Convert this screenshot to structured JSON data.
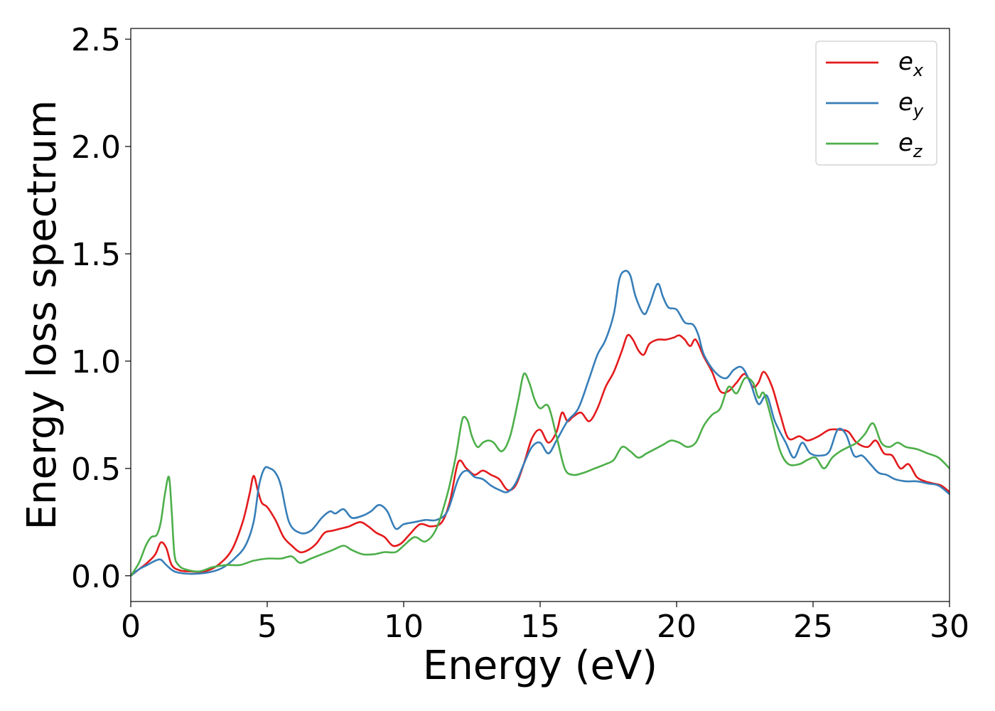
{
  "chart_data": {
    "type": "line",
    "title": "",
    "xlabel": "Energy (eV)",
    "ylabel": "Energy loss spectrum",
    "xlim": [
      0,
      30
    ],
    "ylim": [
      -0.12,
      2.55
    ],
    "xticks": [
      0,
      5,
      10,
      15,
      20,
      25,
      30
    ],
    "xtick_labels": [
      "0",
      "5",
      "10",
      "15",
      "20",
      "25",
      "30"
    ],
    "yticks": [
      0.0,
      0.5,
      1.0,
      1.5,
      2.0,
      2.5
    ],
    "ytick_labels": [
      "0.0",
      "0.5",
      "1.0",
      "1.5",
      "2.0",
      "2.5"
    ],
    "grid": false,
    "legend_position": "top-right",
    "series": [
      {
        "name": "e",
        "subscript": "x",
        "color": "#e41a1c",
        "x": [
          0,
          0.3,
          0.6,
          0.9,
          1.1,
          1.3,
          1.5,
          1.8,
          2.2,
          2.7,
          3.2,
          3.7,
          4.1,
          4.35,
          4.5,
          4.65,
          4.8,
          5.0,
          5.3,
          5.6,
          5.9,
          6.2,
          6.5,
          6.8,
          7.1,
          7.4,
          7.7,
          8.0,
          8.4,
          8.7,
          9.0,
          9.3,
          9.6,
          9.9,
          10.2,
          10.6,
          11.0,
          11.4,
          11.7,
          12.0,
          12.3,
          12.6,
          12.9,
          13.2,
          13.5,
          13.8,
          14.1,
          14.4,
          14.7,
          15.0,
          15.3,
          15.6,
          15.8,
          16.0,
          16.2,
          16.5,
          16.8,
          17.1,
          17.4,
          17.7,
          18.0,
          18.2,
          18.4,
          18.6,
          18.8,
          19.0,
          19.3,
          19.6,
          19.9,
          20.1,
          20.3,
          20.5,
          20.7,
          21.0,
          21.3,
          21.6,
          21.9,
          22.2,
          22.5,
          22.8,
          23.0,
          23.2,
          23.5,
          23.8,
          24.1,
          24.5,
          24.8,
          25.2,
          25.6,
          26.0,
          26.3,
          26.6,
          27.0,
          27.3,
          27.6,
          27.9,
          28.2,
          28.5,
          28.8,
          29.1,
          29.4,
          29.7,
          30.0
        ],
        "y": [
          0.0,
          0.03,
          0.06,
          0.1,
          0.155,
          0.13,
          0.05,
          0.025,
          0.02,
          0.02,
          0.05,
          0.12,
          0.25,
          0.38,
          0.465,
          0.4,
          0.34,
          0.32,
          0.26,
          0.18,
          0.14,
          0.11,
          0.12,
          0.15,
          0.2,
          0.21,
          0.22,
          0.23,
          0.25,
          0.23,
          0.2,
          0.18,
          0.14,
          0.15,
          0.19,
          0.24,
          0.23,
          0.25,
          0.35,
          0.53,
          0.5,
          0.47,
          0.49,
          0.47,
          0.45,
          0.4,
          0.42,
          0.52,
          0.64,
          0.68,
          0.62,
          0.67,
          0.76,
          0.72,
          0.74,
          0.76,
          0.72,
          0.78,
          0.88,
          0.95,
          1.05,
          1.12,
          1.1,
          1.05,
          1.03,
          1.08,
          1.1,
          1.1,
          1.11,
          1.12,
          1.1,
          1.07,
          1.1,
          1.02,
          0.95,
          0.86,
          0.86,
          0.9,
          0.94,
          0.88,
          0.9,
          0.95,
          0.88,
          0.75,
          0.64,
          0.65,
          0.63,
          0.65,
          0.68,
          0.68,
          0.67,
          0.62,
          0.6,
          0.63,
          0.57,
          0.56,
          0.5,
          0.52,
          0.46,
          0.44,
          0.43,
          0.42,
          0.39
        ]
      },
      {
        "name": "e",
        "subscript": "y",
        "color": "#377eb8",
        "x": [
          0,
          0.3,
          0.6,
          0.9,
          1.1,
          1.3,
          1.6,
          2.0,
          2.5,
          3.0,
          3.4,
          3.8,
          4.2,
          4.5,
          4.7,
          4.9,
          5.1,
          5.3,
          5.5,
          5.8,
          6.2,
          6.6,
          7.0,
          7.3,
          7.5,
          7.8,
          8.1,
          8.5,
          8.8,
          9.1,
          9.4,
          9.7,
          10.0,
          10.4,
          10.8,
          11.2,
          11.6,
          12.0,
          12.3,
          12.6,
          12.9,
          13.2,
          13.5,
          13.8,
          14.1,
          14.4,
          14.7,
          15.0,
          15.3,
          15.6,
          16.0,
          16.4,
          16.8,
          17.1,
          17.4,
          17.7,
          17.9,
          18.1,
          18.3,
          18.5,
          18.8,
          19.0,
          19.3,
          19.5,
          19.7,
          20.0,
          20.3,
          20.6,
          20.8,
          21.0,
          21.4,
          21.8,
          22.1,
          22.4,
          22.7,
          23.0,
          23.3,
          23.6,
          24.0,
          24.3,
          24.6,
          24.9,
          25.3,
          25.6,
          25.9,
          26.2,
          26.5,
          26.8,
          27.1,
          27.4,
          27.7,
          28.0,
          28.4,
          28.8,
          29.2,
          29.6,
          30.0
        ],
        "y": [
          0.0,
          0.03,
          0.05,
          0.07,
          0.075,
          0.05,
          0.02,
          0.01,
          0.01,
          0.02,
          0.04,
          0.08,
          0.14,
          0.25,
          0.42,
          0.5,
          0.5,
          0.48,
          0.42,
          0.25,
          0.2,
          0.21,
          0.27,
          0.3,
          0.29,
          0.31,
          0.27,
          0.28,
          0.3,
          0.33,
          0.3,
          0.22,
          0.24,
          0.25,
          0.26,
          0.26,
          0.3,
          0.45,
          0.49,
          0.46,
          0.45,
          0.42,
          0.4,
          0.39,
          0.43,
          0.52,
          0.6,
          0.62,
          0.57,
          0.63,
          0.72,
          0.78,
          0.92,
          1.03,
          1.1,
          1.22,
          1.38,
          1.42,
          1.4,
          1.3,
          1.22,
          1.26,
          1.36,
          1.3,
          1.25,
          1.24,
          1.18,
          1.17,
          1.12,
          1.03,
          0.95,
          0.92,
          0.96,
          0.97,
          0.9,
          0.8,
          0.84,
          0.72,
          0.62,
          0.55,
          0.62,
          0.57,
          0.56,
          0.58,
          0.68,
          0.66,
          0.56,
          0.56,
          0.52,
          0.48,
          0.47,
          0.45,
          0.44,
          0.44,
          0.43,
          0.42,
          0.38
        ]
      },
      {
        "name": "e",
        "subscript": "z",
        "color": "#4daf4a",
        "x": [
          0,
          0.3,
          0.55,
          0.75,
          0.95,
          1.1,
          1.25,
          1.4,
          1.5,
          1.6,
          1.75,
          2.0,
          2.5,
          3.0,
          3.5,
          4.0,
          4.5,
          5.0,
          5.5,
          5.9,
          6.2,
          6.6,
          7.0,
          7.4,
          7.8,
          8.1,
          8.5,
          8.9,
          9.3,
          9.7,
          10.0,
          10.4,
          10.8,
          11.2,
          11.6,
          11.9,
          12.1,
          12.2,
          12.35,
          12.5,
          12.7,
          12.9,
          13.1,
          13.3,
          13.6,
          13.9,
          14.2,
          14.4,
          14.6,
          14.8,
          15.0,
          15.3,
          15.6,
          15.9,
          16.2,
          16.6,
          17.0,
          17.4,
          17.7,
          18.0,
          18.3,
          18.6,
          18.9,
          19.2,
          19.5,
          19.8,
          20.1,
          20.4,
          20.7,
          21.0,
          21.3,
          21.6,
          21.9,
          22.2,
          22.5,
          22.8,
          23.0,
          23.2,
          23.5,
          23.8,
          24.1,
          24.5,
          24.8,
          25.1,
          25.4,
          25.7,
          26.0,
          26.3,
          26.6,
          26.9,
          27.2,
          27.5,
          27.8,
          28.1,
          28.4,
          28.8,
          29.2,
          29.6,
          30.0
        ],
        "y": [
          0.0,
          0.06,
          0.14,
          0.18,
          0.19,
          0.25,
          0.38,
          0.46,
          0.3,
          0.1,
          0.05,
          0.03,
          0.02,
          0.04,
          0.05,
          0.05,
          0.07,
          0.08,
          0.08,
          0.09,
          0.06,
          0.08,
          0.1,
          0.12,
          0.14,
          0.12,
          0.1,
          0.1,
          0.11,
          0.11,
          0.14,
          0.18,
          0.16,
          0.22,
          0.38,
          0.55,
          0.7,
          0.74,
          0.72,
          0.65,
          0.6,
          0.62,
          0.63,
          0.62,
          0.58,
          0.65,
          0.82,
          0.94,
          0.9,
          0.82,
          0.78,
          0.79,
          0.65,
          0.5,
          0.47,
          0.48,
          0.5,
          0.52,
          0.54,
          0.6,
          0.58,
          0.55,
          0.57,
          0.59,
          0.61,
          0.63,
          0.62,
          0.6,
          0.62,
          0.7,
          0.75,
          0.78,
          0.88,
          0.85,
          0.92,
          0.9,
          0.83,
          0.85,
          0.72,
          0.58,
          0.52,
          0.52,
          0.54,
          0.55,
          0.5,
          0.55,
          0.58,
          0.6,
          0.62,
          0.66,
          0.71,
          0.62,
          0.6,
          0.62,
          0.6,
          0.59,
          0.57,
          0.55,
          0.5
        ]
      }
    ]
  }
}
